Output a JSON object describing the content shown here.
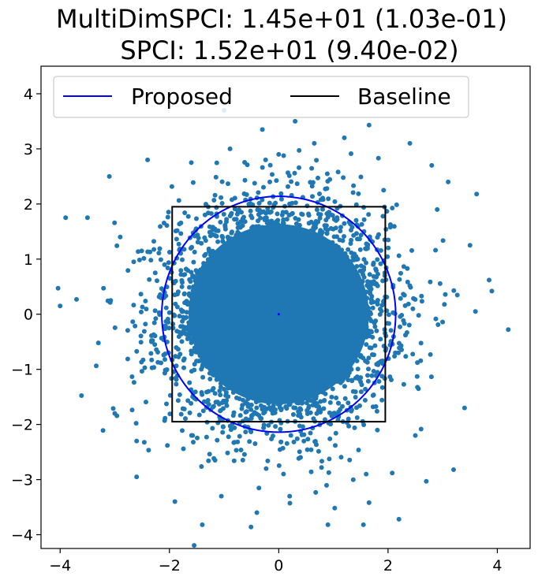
{
  "chart_data": {
    "type": "scatter",
    "title_lines": [
      "MultiDimSPCI: 1.45e+01 (1.03e-01)",
      "SPCI: 1.52e+01 (9.40e-02)"
    ],
    "xlabel": "",
    "ylabel": "",
    "xlim": [
      -4.35,
      4.6
    ],
    "ylim": [
      -4.25,
      4.5
    ],
    "x_ticks": [
      -4,
      -2,
      0,
      2,
      4
    ],
    "y_ticks": [
      -4,
      -3,
      -2,
      -1,
      0,
      1,
      2,
      3,
      4
    ],
    "x_tick_labels": [
      "−4",
      "−2",
      "0",
      "2",
      "4"
    ],
    "y_tick_labels": [
      "−4",
      "−3",
      "−2",
      "−1",
      "0",
      "1",
      "2",
      "3",
      "4"
    ],
    "grid": false,
    "legend": {
      "placement": "upper-left",
      "columns": 2,
      "entries": [
        {
          "label": "Proposed",
          "color": "#0000ff",
          "style": "line"
        },
        {
          "label": "Baseline",
          "color": "#000000",
          "style": "line"
        }
      ]
    },
    "scatter": {
      "color": "#1f77b4",
      "distribution": "2D standard normal around (0, 0)",
      "sample_points": [
        [
          -4.0,
          0.15
        ],
        [
          -3.9,
          1.75
        ],
        [
          4.2,
          -0.28
        ],
        [
          3.85,
          0.62
        ],
        [
          3.9,
          0.42
        ],
        [
          -1.0,
          3.7
        ],
        [
          -0.3,
          3.35
        ],
        [
          0.3,
          3.5
        ],
        [
          0.65,
          3.1
        ],
        [
          1.2,
          3.2
        ],
        [
          2.4,
          3.1
        ],
        [
          2.8,
          2.7
        ],
        [
          -2.4,
          2.8
        ],
        [
          -3.1,
          2.5
        ],
        [
          -3.5,
          1.75
        ],
        [
          3.1,
          2.4
        ],
        [
          3.5,
          1.25
        ],
        [
          3.6,
          0.05
        ],
        [
          3.4,
          -1.7
        ],
        [
          3.2,
          -2.82
        ],
        [
          2.7,
          -3.03
        ],
        [
          2.2,
          -3.72
        ],
        [
          1.55,
          -3.82
        ],
        [
          0.9,
          -3.82
        ],
        [
          -1.4,
          -3.82
        ],
        [
          -1.9,
          -3.4
        ],
        [
          -2.6,
          -2.95
        ],
        [
          -3.0,
          -1.8
        ],
        [
          -3.3,
          -0.52
        ],
        [
          -3.7,
          0.27
        ],
        [
          1.6,
          -2.9
        ],
        [
          -0.4,
          -3.6
        ],
        [
          0.2,
          -3.3
        ],
        [
          -1.05,
          -3.3
        ],
        [
          2.9,
          1.9
        ],
        [
          -2.9,
          1.4
        ],
        [
          -2.6,
          -2.3
        ],
        [
          2.5,
          -2.2
        ],
        [
          0.0,
          2.9
        ],
        [
          -1.6,
          2.75
        ]
      ],
      "center_marker": {
        "x": 0.0,
        "y": 0.0,
        "color": "#0000ff"
      }
    },
    "series": [
      {
        "name": "Proposed",
        "shape": "circle",
        "center": [
          0.0,
          0.0
        ],
        "radius": 2.14,
        "color": "#0000ff"
      },
      {
        "name": "Baseline",
        "shape": "rectangle",
        "x_range": [
          -1.95,
          1.95
        ],
        "y_range": [
          -1.95,
          1.95
        ],
        "color": "#000000"
      }
    ]
  }
}
